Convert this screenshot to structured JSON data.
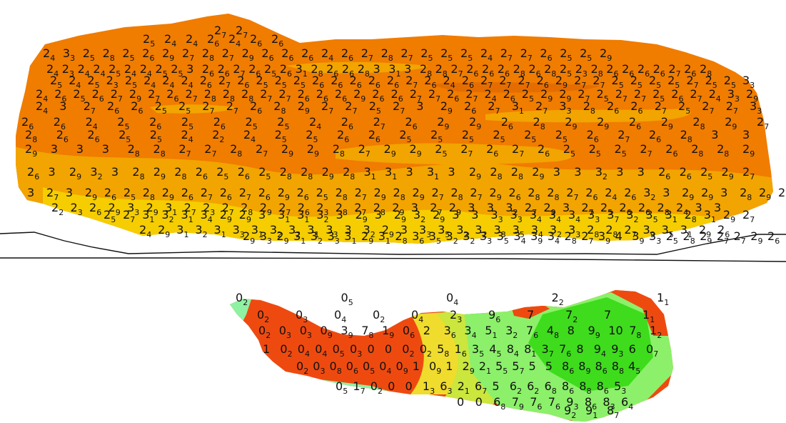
{
  "colors": {
    "background": "#ffffff",
    "orange": "#f07c00",
    "orange_dark": "#e56d00",
    "amber": "#f2a400",
    "yellow": "#f5cd00",
    "red": "#ee4a10",
    "green_pale": "#8ef2a2",
    "green_light": "#8cf06a",
    "green": "#3edc1c",
    "lime": "#cbe63c",
    "yellow_green": "#f0dc2c",
    "terrain_line": "#111111",
    "label": "#111111"
  },
  "upper_map": {
    "rows": [
      [
        "2.7",
        "2.7"
      ],
      [
        "2.5",
        "2.4",
        "2.4",
        "2.6",
        "2.4",
        "2.6",
        "2.6"
      ],
      [
        "2.4",
        "3.3",
        "2.5",
        "2.8",
        "2.5",
        "2.6",
        "2.9",
        "2.7",
        "2.8",
        "2.7",
        "2.9",
        "2.6",
        "2.6",
        "2.6",
        "2.4",
        "2.6",
        "2.7",
        "2.8",
        "2.7",
        "2.5",
        "2.5",
        "2.5",
        "2.4",
        "2.7",
        "2.7",
        "2.6",
        "2.5",
        "2.5",
        "2.9"
      ],
      [
        "2.4",
        "2.3",
        "2.4",
        "2.4",
        "2.5",
        "2.4",
        "2.4",
        "2.5",
        "2.5",
        "3",
        "2.6",
        "2.6",
        "2.7",
        "2.6",
        "2.5",
        "2.6",
        "3.1",
        "2.8",
        "2.6",
        "2.6",
        "2.8",
        "3",
        "3.1",
        "3",
        "2.8",
        "2.8",
        "2.7",
        "2.6",
        "2.6",
        "2.6",
        "2.8",
        "2.6",
        "2.8",
        "2.5",
        "2.3",
        "2.8",
        "2.6",
        "2.6",
        "2.6",
        "2.6",
        "2.7",
        "2.6",
        "2.8"
      ],
      [
        "2.5",
        "2.4",
        "2.5",
        "2.3",
        "2.5",
        "2.4",
        "2.4",
        "2.4",
        "2.6",
        "2.7",
        "2.6",
        "2.5",
        "2.5",
        "2.5",
        "2.6",
        "2.6",
        "2.6",
        "2.6",
        "2.6",
        "2.7",
        "2.6",
        "2.4",
        "2.6",
        "2.7",
        "2.7",
        "2.7",
        "2.6",
        "2.9",
        "2.7",
        "2.7",
        "2.5",
        "2.5",
        "2.5",
        "2.5",
        "2.7",
        "2.5",
        "2.5",
        "3.3"
      ],
      [
        "2.4",
        "2.6",
        "2.5",
        "2.6",
        "2.7",
        "2.9",
        "2.7",
        "2.6",
        "2.7",
        "2.8",
        "2.8",
        "2.8",
        "2.7",
        "2.7",
        "2.6",
        "2.6",
        "2.6",
        "2.9",
        "2.6",
        "2.6",
        "2.7",
        "2.7",
        "2.6",
        "2.7",
        "2.4",
        "2.6",
        "2.5",
        "2.9",
        "2.9",
        "2.7",
        "2.5",
        "2.7",
        "2.7",
        "2.5",
        "2.6",
        "2.7",
        "2.4",
        "3.3",
        "2.9"
      ],
      [
        "2.4",
        "3",
        "2.7",
        "2.6",
        "2.6",
        "2.5",
        "2.5",
        "2.7",
        "2.7",
        "2.6",
        "2.8",
        "2.9",
        "2.7",
        "2.7",
        "2.5",
        "2.7",
        "3",
        "2.9",
        "2.6",
        "2.7",
        "3.1",
        "2.7",
        "3.3",
        "2.8",
        "2.6",
        "2.6",
        "2.7",
        "2.5",
        "2.7",
        "2.7",
        "3.3"
      ],
      [
        "2.6",
        "2.6",
        "2.4",
        "2.5",
        "2.6",
        "2.5",
        "2.6",
        "2.5",
        "2.5",
        "2.4",
        "2.6",
        "2.7",
        "2.6",
        "2.9",
        "2.9",
        "2.6",
        "2.8",
        "2.9",
        "2.9",
        "2.6",
        "2.9",
        "2.8",
        "2.9",
        "2.7"
      ],
      [
        "2.8",
        "2.6",
        "2.6",
        "2.5",
        "2.5",
        "2.4",
        "2.2",
        "2.4",
        "2.5",
        "2.5",
        "2.6",
        "2.6",
        "2.5",
        "2.5",
        "2.5",
        "2.5",
        "2.5",
        "2.5",
        "2.6",
        "2.7",
        "2.6",
        "2.8",
        "3",
        "3"
      ],
      [
        "2.9",
        "3",
        "3",
        "3",
        "2.8",
        "2.8",
        "2.7",
        "2.7",
        "2.8",
        "2.7",
        "2.9",
        "2.9",
        "2.8",
        "2.7",
        "2.9",
        "2.9",
        "2.5",
        "2.7",
        "2.6",
        "2.7",
        "2.6",
        "2.5",
        "2.5",
        "2.5",
        "2.7",
        "2.6",
        "2.8",
        "2.8",
        "2.9"
      ],
      [
        "2.6",
        "3",
        "2.9",
        "3.2",
        "3",
        "2.8",
        "2.9",
        "2.8",
        "2.6",
        "2.5",
        "2.6",
        "2.5",
        "2.8",
        "2.8",
        "2.9",
        "2.8",
        "3.1",
        "3.1",
        "3",
        "3.1",
        "3",
        "2.9",
        "2.8",
        "2.8",
        "2.9",
        "3",
        "3",
        "3.2",
        "3",
        "3",
        "2.6",
        "2.6",
        "2.5",
        "2.9",
        "2.7"
      ],
      [
        "3",
        "2.7",
        "3",
        "2.9",
        "2.6",
        "2.5",
        "2.8",
        "2.9",
        "2.6",
        "2.7",
        "2.6",
        "2.7",
        "2.6",
        "2.9",
        "2.6",
        "2.5",
        "2.8",
        "2.7",
        "2.9",
        "2.8",
        "2.9",
        "2.7",
        "2.8",
        "2.7",
        "2.9",
        "2.6",
        "2.8",
        "2.8",
        "2.7",
        "2.6",
        "2.4",
        "2.6",
        "3.2",
        "3",
        "2.9",
        "2.9",
        "3",
        "2.8",
        "2.9",
        "2.7"
      ],
      [
        "2.2",
        "2.3",
        "2.6",
        "2.9",
        "3.3",
        "2.9",
        "3.1",
        "2.7",
        "2.3",
        "2.7",
        "2.8",
        "2.9",
        "2.7",
        "2.6",
        "2.3",
        "2.8",
        "2.7",
        "2.8",
        "2.9",
        "3",
        "2.7",
        "2.9",
        "3",
        "3",
        "3.2",
        "2.7",
        "2.9",
        "3",
        "2.7",
        "2.5",
        "2.6",
        "2.6",
        "2.8",
        "2.4",
        "3",
        "3"
      ],
      [
        "2.5",
        "2.7",
        "3.1",
        "3.2",
        "3.1",
        "3.4",
        "2.9",
        "2.9",
        "3",
        "3.1",
        "3.1",
        "3.2",
        "3",
        "2.9",
        "3",
        "2.9",
        "3.2",
        "2.9",
        "3",
        "3",
        "3.3",
        "3.3",
        "3.4",
        "3.4",
        "3.4",
        "3.3",
        "3.7",
        "3.2",
        "3.5",
        "3.1",
        "2.8",
        "3.1",
        "2.9",
        "2.7"
      ],
      [
        "2.4",
        "2.9",
        "3.1",
        "3.2",
        "3.1",
        "3.3",
        "3.1",
        "3.2",
        "3.2",
        "3.1",
        "3.3",
        "3",
        "3.2",
        "2.9",
        "3",
        "3.3",
        "3.5",
        "3.2",
        "3.2",
        "3.3",
        "3.5",
        "3.4",
        "3.2",
        "3.3",
        "2.8",
        "2.8",
        "2.7",
        "3.9",
        "3.5",
        "3.1",
        "2.9",
        "2.6"
      ],
      [
        "2.9",
        "3.3",
        "2.9",
        "3.1",
        "3.2",
        "3.3",
        "3.1",
        "2.9",
        "3.1",
        "2.8",
        "3.6",
        "3.5",
        "3.2",
        "3.2",
        "3.3",
        "3.5",
        "3.4",
        "3.9",
        "3.4",
        "2.8",
        "2.7",
        "3.9",
        "4",
        "3.9",
        "3.3",
        "2.5",
        "2.8",
        "2.9",
        "2.7",
        "2.7",
        "2.9",
        "2.6"
      ]
    ]
  },
  "lower_map": {
    "rows": [
      [
        "0.2",
        "0.5",
        "0.4",
        "2.2",
        "1.1"
      ],
      [
        "0.2",
        "0.3",
        "0.4",
        "0.2",
        "0.4",
        "2.3",
        "9.6",
        "7",
        "7.2",
        "7",
        "1.1"
      ],
      [
        "0.2",
        "0.3",
        "0.3",
        "0.9",
        "3.9",
        "7.8",
        "1.9",
        "0.6",
        "2",
        "3.6",
        "3.4",
        "5.1",
        "3.2",
        "7.6",
        "4.8",
        "8",
        "9.9",
        "10",
        "7.8",
        "1.2"
      ],
      [
        "1",
        "0.2",
        "0.4",
        "0.4",
        "0.5",
        "0.3",
        "0",
        "0",
        "0.2",
        "0.2",
        "5.8",
        "1.6",
        "3.5",
        "4.5",
        "8.4",
        "8.1",
        "3.7",
        "7.6",
        "8",
        "9.4",
        "9.3",
        "6",
        "0.7"
      ],
      [
        "0.2",
        "0.3",
        "0.8",
        "0.6",
        "0.5",
        "0.4",
        "0.9",
        "1",
        "0.9",
        "1",
        "2.9",
        "2.1",
        "5.5",
        "5.7",
        "5",
        "5",
        "8.6",
        "8.9",
        "8.6",
        "8.8",
        "4.5"
      ],
      [
        "0.5",
        "1.7",
        "0.2",
        "0",
        "0",
        "1.3",
        "6.3",
        "2.1",
        "6.7",
        "5",
        "6.2",
        "6.2",
        "6.8",
        "8.6",
        "8.8",
        "8.6",
        "5.3"
      ],
      [
        "0",
        "0",
        "6.8",
        "7.9",
        "7.6",
        "7.6",
        "9.3",
        "8.6",
        "8.3",
        "6.4"
      ],
      [
        "9.2",
        "9.1",
        "8.7"
      ]
    ]
  }
}
